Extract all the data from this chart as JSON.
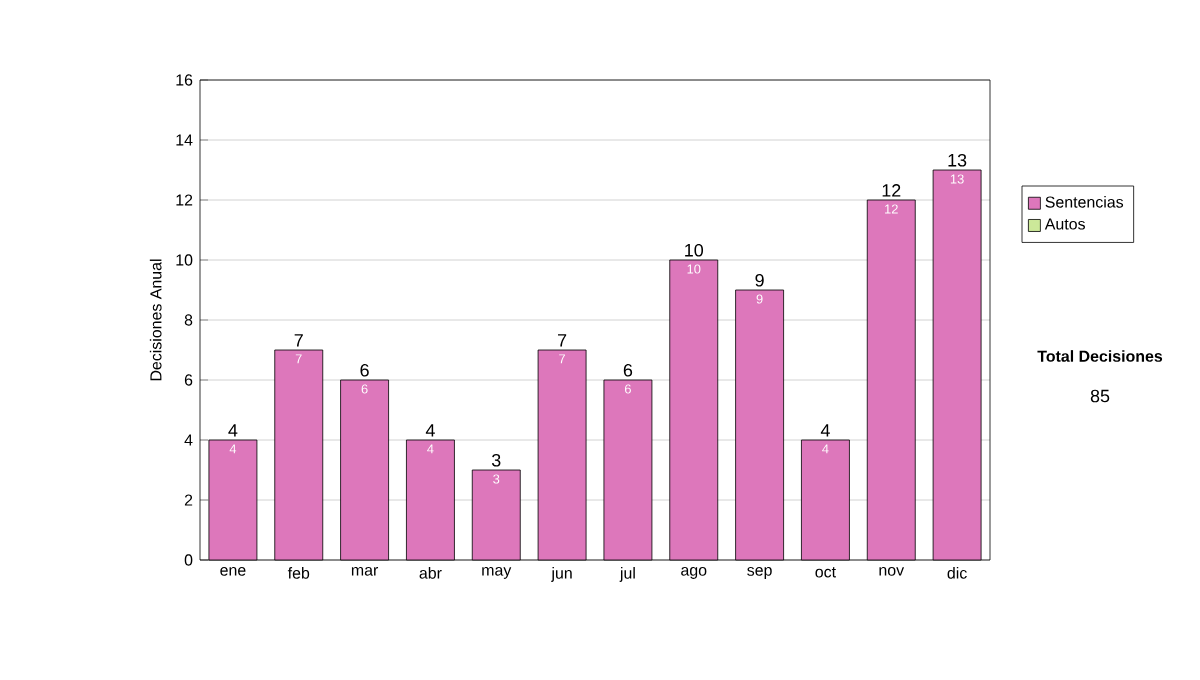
{
  "chart_data": {
    "type": "bar",
    "stacked": true,
    "ylabel": "Decisiones Anual",
    "categories": [
      "ene",
      "feb",
      "mar",
      "abr",
      "may",
      "jun",
      "jul",
      "ago",
      "sep",
      "oct",
      "nov",
      "dic"
    ],
    "series": [
      {
        "name": "Sentencias",
        "color": "#dd77bb",
        "values": [
          4,
          7,
          6,
          4,
          3,
          7,
          6,
          10,
          9,
          4,
          12,
          13
        ],
        "value_labels": [
          "4",
          "7",
          "6",
          "4",
          "3",
          "7",
          "6",
          "10",
          "9",
          "4",
          "12",
          "13"
        ]
      },
      {
        "name": "Autos",
        "color": "#cce899",
        "values": [
          0,
          0,
          0,
          0,
          0,
          0,
          0,
          0,
          0,
          0,
          0,
          0
        ]
      }
    ],
    "totals": [
      "4",
      "7",
      "6",
      "4",
      "3",
      "7",
      "6",
      "10",
      "9",
      "4",
      "12",
      "13"
    ],
    "ylim": [
      0,
      16
    ],
    "yticks": [
      0,
      2,
      4,
      6,
      8,
      10,
      12,
      14,
      16
    ],
    "grid": "y",
    "legend": "right",
    "annotations": [
      "Total Decisiones",
      "85"
    ]
  }
}
